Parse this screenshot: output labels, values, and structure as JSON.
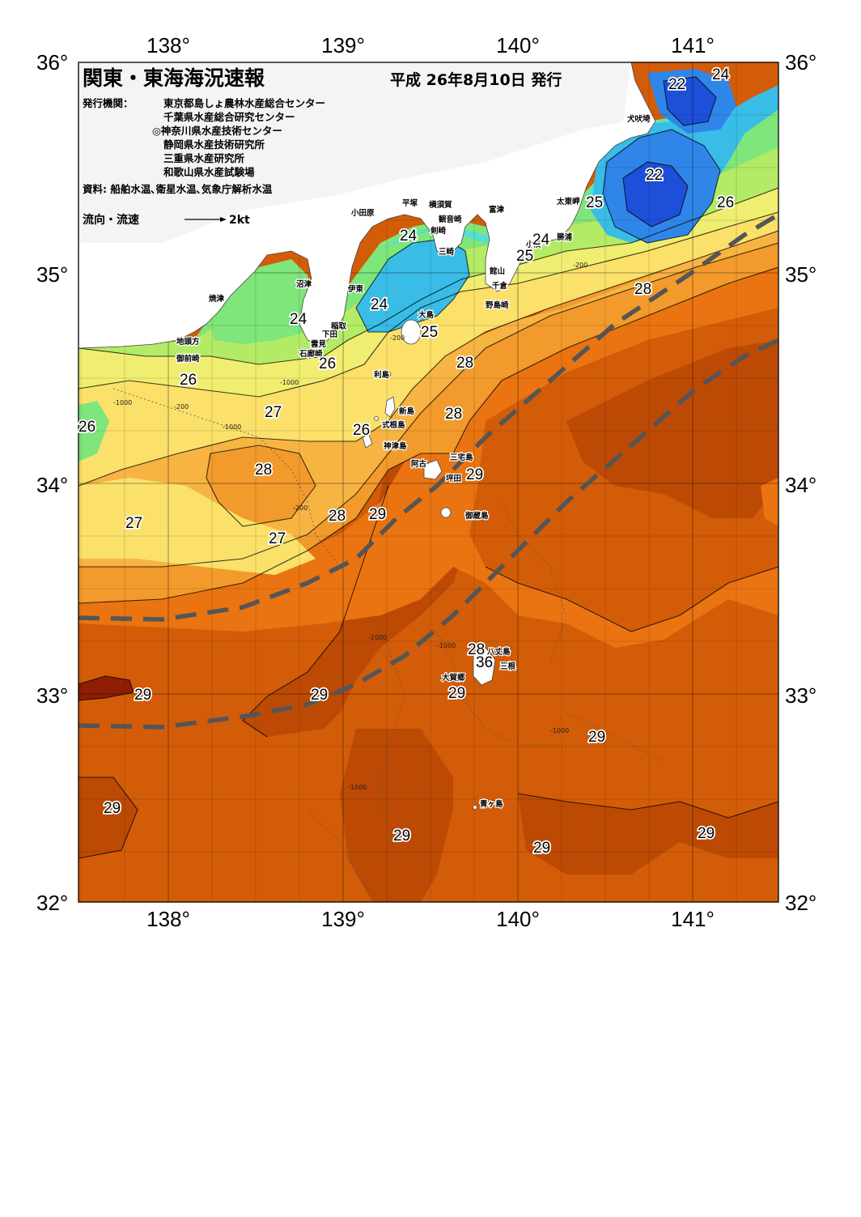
{
  "header": {
    "title": "関東・東海海況速報",
    "issue_date": "平成 26年8月10日 発行",
    "issuer_label": "発行機関：",
    "issuers": [
      "東京都島しょ農林水産総合センター",
      "千葉県水産総合研究センター",
      "◎神奈川県水産技術センター",
      "静岡県水産技術研究所",
      "三重県水産研究所",
      "和歌山県水産試験場"
    ],
    "sources": "資料: 船舶水温､衛星水温､気象庁解析水温",
    "legend_label": "流向・流速",
    "legend_speed": "2kt"
  },
  "axes": {
    "lon_labels": [
      "138°",
      "139°",
      "140°",
      "141°"
    ],
    "lat_labels": [
      "36°",
      "35°",
      "34°",
      "33°",
      "32°"
    ]
  },
  "temperature_labels": [
    {
      "text": "22"
    },
    {
      "text": "24"
    },
    {
      "text": "22"
    },
    {
      "text": "25"
    },
    {
      "text": "26"
    },
    {
      "text": "24"
    },
    {
      "text": "24"
    },
    {
      "text": "25"
    },
    {
      "text": "28"
    },
    {
      "text": "24"
    },
    {
      "text": "24"
    },
    {
      "text": "25"
    },
    {
      "text": "26"
    },
    {
      "text": "28"
    },
    {
      "text": "26"
    },
    {
      "text": "27"
    },
    {
      "text": "28"
    },
    {
      "text": "26"
    },
    {
      "text": "26"
    },
    {
      "text": "28"
    },
    {
      "text": "27"
    },
    {
      "text": "28"
    },
    {
      "text": "29"
    },
    {
      "text": "29"
    },
    {
      "text": "27"
    },
    {
      "text": "28"
    },
    {
      "text": "36"
    },
    {
      "text": "29"
    },
    {
      "text": "29"
    },
    {
      "text": "29"
    },
    {
      "text": "29"
    },
    {
      "text": "29"
    },
    {
      "text": "29"
    },
    {
      "text": "29"
    },
    {
      "text": "29"
    }
  ],
  "place_names": [
    "犬吠埼",
    "太東岬",
    "勝浦",
    "小湊",
    "横須賀",
    "平塚",
    "観音崎",
    "富津",
    "剣崎",
    "三崎",
    "館山",
    "千倉",
    "野島崎",
    "小田原",
    "沼津",
    "伊東",
    "焼津",
    "稲取",
    "下田",
    "雲見",
    "石廊崎",
    "地頭方",
    "御前崎",
    "大島",
    "利島",
    "新島",
    "式根島",
    "神津島",
    "三宅島",
    "阿古",
    "坪田",
    "御蔵島",
    "八丈島",
    "三根",
    "大賀郷",
    "青ヶ島"
  ],
  "depth_labels": [
    "-1000",
    "-200",
    "-1000",
    "-200",
    "-1000",
    "-200",
    "-1000",
    "-1000",
    "-1000",
    "-1000",
    "-200"
  ],
  "colors": {
    "t22": "#1e4fd8",
    "t23": "#2f86e8",
    "t24": "#39bde6",
    "t245": "#52e0d4",
    "t25": "#7ee67a",
    "t26": "#b4eb66",
    "t265": "#f0ee70",
    "t27": "#fbe06a",
    "t275": "#f7b443",
    "t28": "#f29a2c",
    "t285": "#ea7412",
    "t29": "#d35c08",
    "t295": "#bc4a05",
    "t30": "#8f1e04",
    "land": "#ffffff",
    "kuroshio": "#555555"
  }
}
